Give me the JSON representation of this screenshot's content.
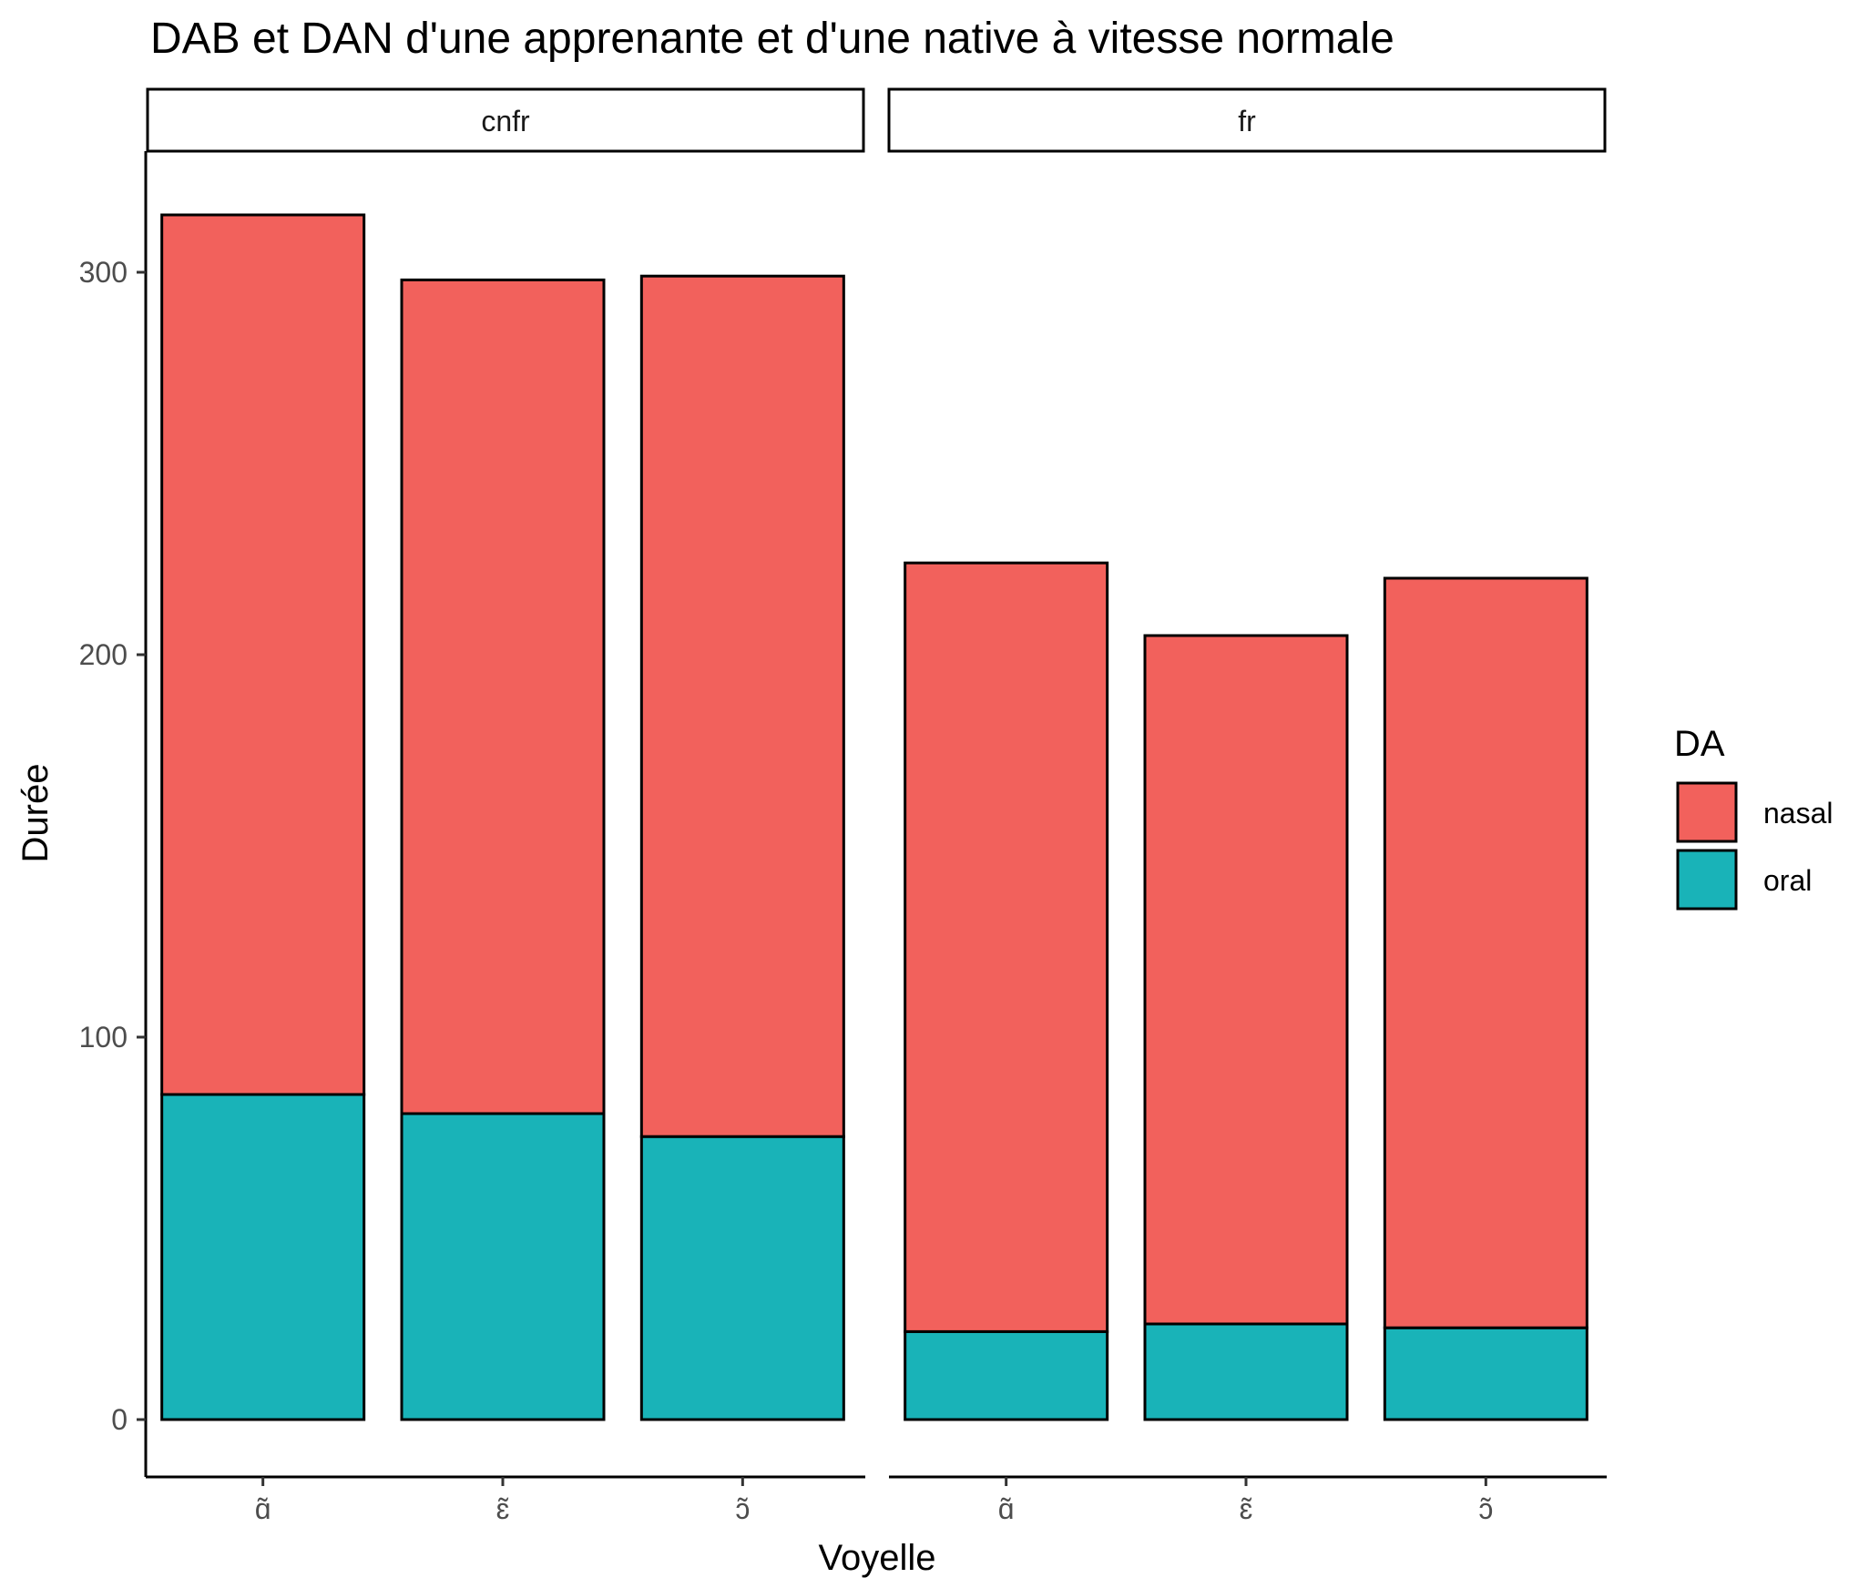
{
  "chart_data": {
    "type": "bar",
    "stacked": true,
    "title": "DAB et DAN d'une apprenante et d'une native à vitesse normale",
    "xlabel": "Voyelle",
    "ylabel": "Durée",
    "ylim": [
      -15,
      330
    ],
    "yticks": [
      0,
      100,
      200,
      300
    ],
    "grid": false,
    "legend": {
      "title": "DA",
      "position": "right"
    },
    "facets": [
      {
        "label": "cnfr",
        "categories": [
          "ɑ̃",
          "ɛ̃",
          "ɔ̃"
        ],
        "series": [
          {
            "name": "oral",
            "color": "#19B3B8",
            "values": [
              85,
              80,
              74
            ]
          },
          {
            "name": "nasal",
            "color": "#F2615C",
            "values": [
              230,
              218,
              225
            ]
          }
        ]
      },
      {
        "label": "fr",
        "categories": [
          "ɑ̃",
          "ɛ̃",
          "ɔ̃"
        ],
        "series": [
          {
            "name": "oral",
            "color": "#19B3B8",
            "values": [
              23,
              25,
              24
            ]
          },
          {
            "name": "nasal",
            "color": "#F2615C",
            "values": [
              201,
              180,
              196
            ]
          }
        ]
      }
    ],
    "legend_entries": [
      {
        "name": "nasal",
        "color": "#F2615C"
      },
      {
        "name": "oral",
        "color": "#19B3B8"
      }
    ]
  }
}
